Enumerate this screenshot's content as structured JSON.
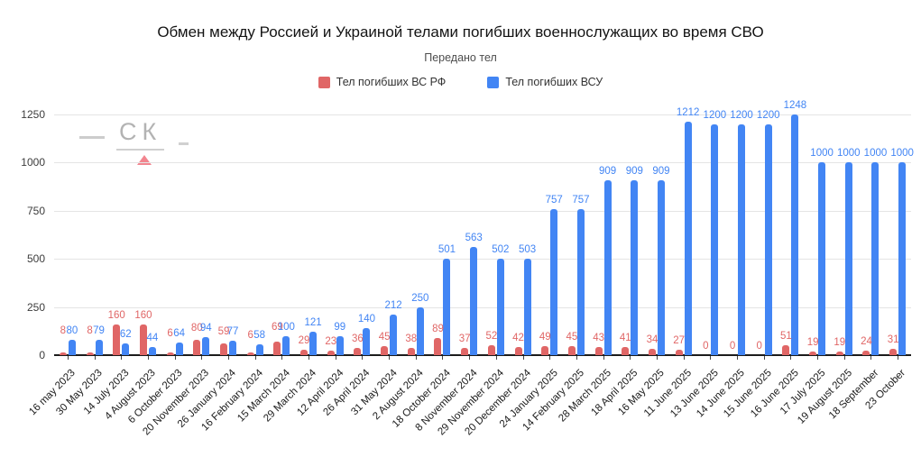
{
  "header": {
    "title": "Обмен между Россией и Украиной телами погибших военнослужащих во время СВО",
    "subtitle": "Передано тел"
  },
  "watermark": {
    "text": "СК",
    "dash": "—",
    "underscore": "_",
    "triangle_color": "#f2858f",
    "text_color": "#b3b3b3"
  },
  "chart_data": {
    "type": "bar",
    "title": "Обмен между Россией и Украиной телами погибших военнослужащих во время СВО",
    "subtitle": "Передано тел",
    "grid": true,
    "legend_position": "top",
    "data_labels": true,
    "ylim": [
      0,
      1250
    ],
    "yticks": [
      0,
      250,
      500,
      750,
      1000,
      1250
    ],
    "categories": [
      "16 may 2023",
      "30 May 2023",
      "14 July 2023",
      "4 August 2023",
      "6 October 2023",
      "20 November 2023",
      "26 January 2024",
      "16 February 2024",
      "15 March 2024",
      "29 March 2024",
      "12 April 2024",
      "26 April 2024",
      "31 May 2024",
      "2 August 2024",
      "18 October 2024",
      "8 November 2024",
      "29 November 2024",
      "20 December 2024",
      "24 January 2025",
      "14 February 2025",
      "28 March 2025",
      "18 April 2025",
      "16 May 2025",
      "11 June 2025",
      "13 June 2025",
      "14 June 2025",
      "15 June 2025",
      "16 June 2025",
      "17 July 2025",
      "19 August 2025",
      "18 September",
      "23 October"
    ],
    "series": [
      {
        "name": "Тел погибших ВС  РФ",
        "color": "#e06666",
        "values": [
          8,
          8,
          160,
          160,
          6,
          80,
          59,
          6,
          69,
          29,
          23,
          36,
          45,
          38,
          89,
          37,
          52,
          42,
          49,
          45,
          43,
          41,
          34,
          27,
          0,
          0,
          0,
          51,
          19,
          19,
          24,
          31
        ]
      },
      {
        "name": "Тел погибших ВСУ",
        "color": "#4285f4",
        "values": [
          80,
          79,
          62,
          44,
          64,
          94,
          77,
          58,
          100,
          121,
          99,
          140,
          212,
          250,
          501,
          563,
          502,
          503,
          757,
          757,
          909,
          909,
          909,
          1212,
          1200,
          1200,
          1200,
          1248,
          1000,
          1000,
          1000,
          1000
        ]
      }
    ]
  }
}
